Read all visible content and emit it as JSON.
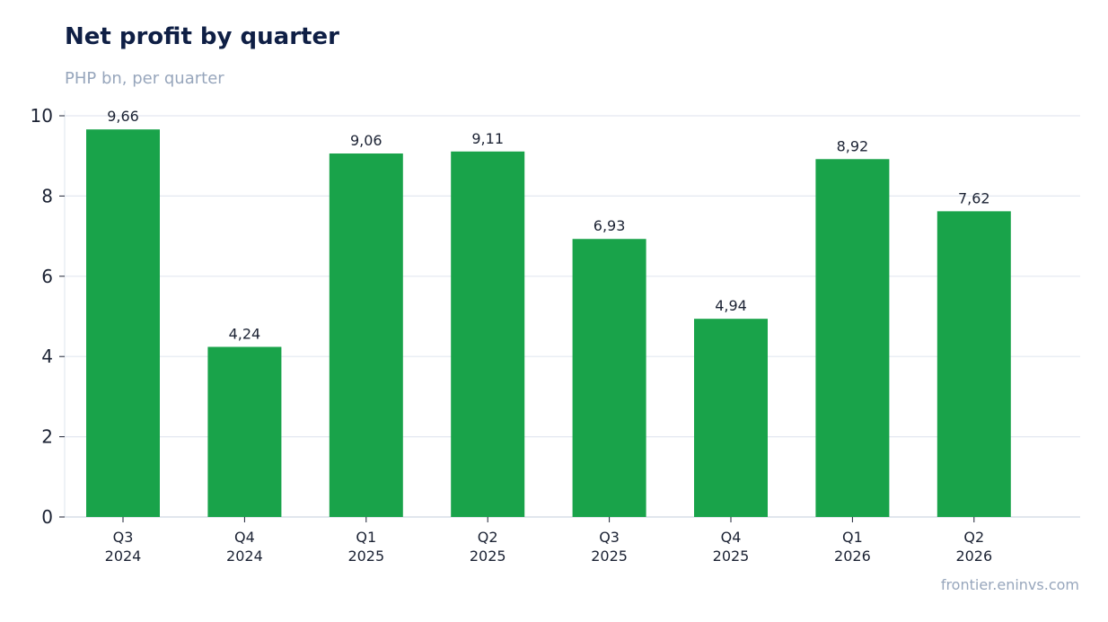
{
  "header": {
    "title": "Net profit by quarter",
    "subtitle": "PHP bn, per quarter"
  },
  "footer": {
    "source": "frontier.eninvs.com"
  },
  "colors": {
    "bar": "#19a34a",
    "grid": "#e3e8f0",
    "axis": "#cfd6e2",
    "text": "#1b2233"
  },
  "chart_data": {
    "type": "bar",
    "categories": [
      [
        "Q3",
        "2024"
      ],
      [
        "Q4",
        "2024"
      ],
      [
        "Q1",
        "2025"
      ],
      [
        "Q2",
        "2025"
      ],
      [
        "Q3",
        "2025"
      ],
      [
        "Q4",
        "2025"
      ],
      [
        "Q1",
        "2026"
      ],
      [
        "Q2",
        "2026"
      ]
    ],
    "values": [
      9.66,
      4.24,
      9.06,
      9.11,
      6.93,
      4.94,
      8.92,
      7.62
    ],
    "value_labels": [
      "9,66",
      "4,24",
      "9,06",
      "9,11",
      "6,93",
      "4,94",
      "8,92",
      "7,62"
    ],
    "title": "Net profit by quarter",
    "subtitle": "PHP bn, per quarter",
    "xlabel": "",
    "ylabel": "",
    "ylim": [
      0,
      10
    ],
    "yticks": [
      0,
      2,
      4,
      6,
      8,
      10
    ],
    "grid": true,
    "legend": "none"
  }
}
